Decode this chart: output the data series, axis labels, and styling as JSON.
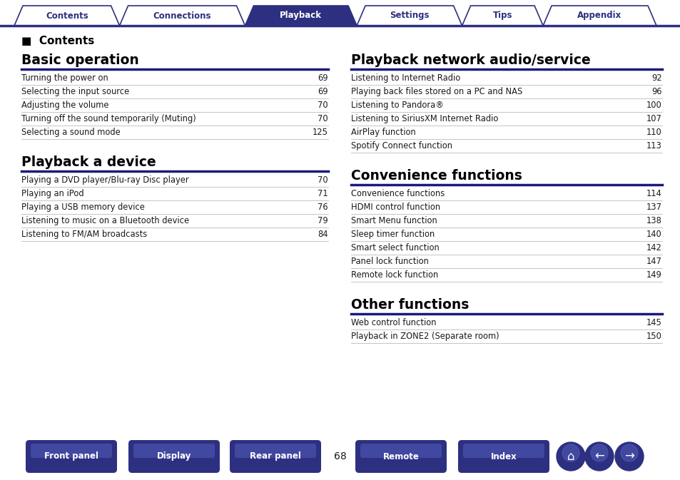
{
  "bg_color": "#ffffff",
  "tab_active_color": "#2d3080",
  "tab_inactive_color": "#ffffff",
  "tab_border_color": "#2d3080",
  "tab_labels": [
    "Contents",
    "Connections",
    "Playback",
    "Settings",
    "Tips",
    "Appendix"
  ],
  "tab_active_index": 2,
  "section_line_color": "#1a1a7a",
  "row_line_color": "#bbbbbb",
  "text_color": "#1a1a1a",
  "heading_color": "#000000",
  "contents_label": "■  Contents",
  "sections_left": [
    {
      "title": "Basic operation",
      "items": [
        [
          "Turning the power on",
          "69"
        ],
        [
          "Selecting the input source",
          "69"
        ],
        [
          "Adjusting the volume",
          "70"
        ],
        [
          "Turning off the sound temporarily (Muting)",
          "70"
        ],
        [
          "Selecting a sound mode",
          "125"
        ]
      ]
    },
    {
      "title": "Playback a device",
      "items": [
        [
          "Playing a DVD player/Blu-ray Disc player",
          "70"
        ],
        [
          "Playing an iPod",
          "71"
        ],
        [
          "Playing a USB memory device",
          "76"
        ],
        [
          "Listening to music on a Bluetooth device",
          "79"
        ],
        [
          "Listening to FM/AM broadcasts",
          "84"
        ]
      ]
    }
  ],
  "sections_right": [
    {
      "title": "Playback network audio/service",
      "items": [
        [
          "Listening to Internet Radio",
          "92"
        ],
        [
          "Playing back files stored on a PC and NAS",
          "96"
        ],
        [
          "Listening to Pandora®",
          "100"
        ],
        [
          "Listening to SiriusXM Internet Radio",
          "107"
        ],
        [
          "AirPlay function",
          "110"
        ],
        [
          "Spotify Connect function",
          "113"
        ]
      ]
    },
    {
      "title": "Convenience functions",
      "items": [
        [
          "Convenience functions",
          "114"
        ],
        [
          "HDMI control function",
          "137"
        ],
        [
          "Smart Menu function",
          "138"
        ],
        [
          "Sleep timer function",
          "140"
        ],
        [
          "Smart select function",
          "142"
        ],
        [
          "Panel lock function",
          "147"
        ],
        [
          "Remote lock function",
          "149"
        ]
      ]
    },
    {
      "title": "Other functions",
      "items": [
        [
          "Web control function",
          "145"
        ],
        [
          "Playback in ZONE2 (Separate room)",
          "150"
        ]
      ]
    }
  ],
  "bottom_buttons": [
    "Front panel",
    "Display",
    "Rear panel",
    "Remote",
    "Index"
  ],
  "page_number": "68",
  "button_color": "#2d3080",
  "button_text_color": "#ffffff",
  "top_line_color": "#2d3080",
  "tab_line_color": "#2d3080"
}
